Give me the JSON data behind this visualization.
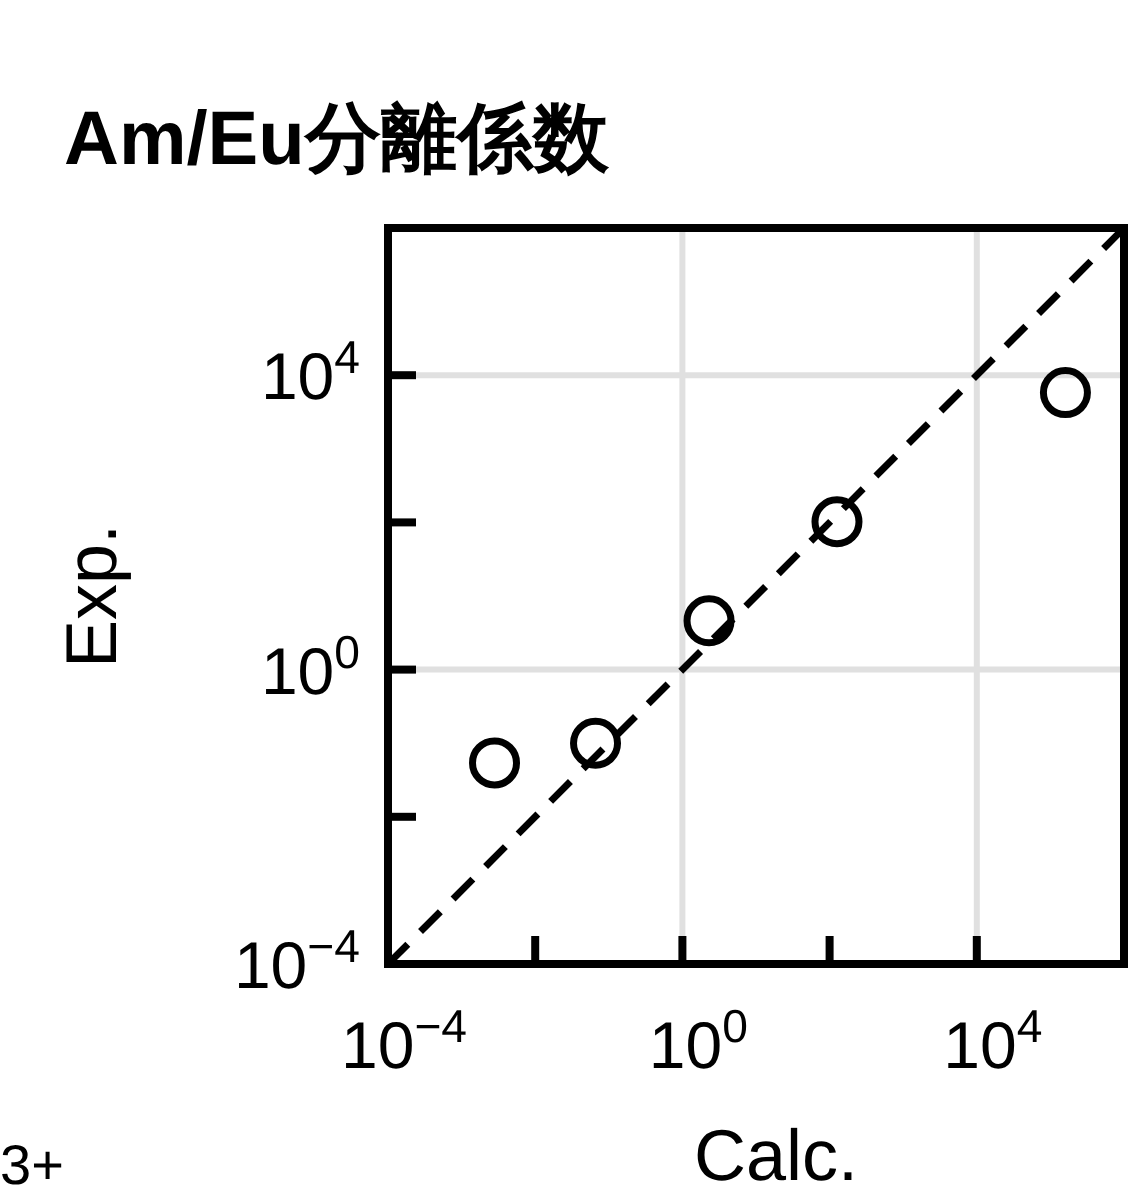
{
  "chart_data": {
    "type": "scatter",
    "title": "Am/Eu分離係数",
    "xlabel": "Calc.",
    "ylabel": "Exp.",
    "log": "xy",
    "grid": true,
    "marker": "circle",
    "xlim": [
      0.0001,
      1000000
    ],
    "ylim": [
      0.0001,
      1000000
    ],
    "xticks": [
      {
        "value": 0.0001,
        "label": "10$^{−4}$"
      },
      {
        "value": 0.01,
        "label": null
      },
      {
        "value": 1,
        "label": "10$^{0}$"
      },
      {
        "value": 100,
        "label": null
      },
      {
        "value": 10000,
        "label": "10$^{4}$"
      }
    ],
    "yticks": [
      {
        "value": 0.0001,
        "label": "10$^{−4}$"
      },
      {
        "value": 0.01,
        "label": null
      },
      {
        "value": 1,
        "label": "10$^{0}$"
      },
      {
        "value": 100,
        "label": null
      },
      {
        "value": 10000,
        "label": "10$^{4}$"
      }
    ],
    "series": [
      {
        "type": "line",
        "line_style": "dashed",
        "marker": "none",
        "color": "#000000",
        "x": [
          0.0001,
          1000000
        ],
        "values": [
          0.0001,
          1000000
        ]
      },
      {
        "color": "#000000",
        "x": [
          0.0028,
          0.066,
          2.3,
          126,
          160000
        ],
        "values": [
          0.054,
          0.1,
          4.6,
          102,
          5800
        ]
      }
    ],
    "annotations": [
      "3+"
    ]
  }
}
